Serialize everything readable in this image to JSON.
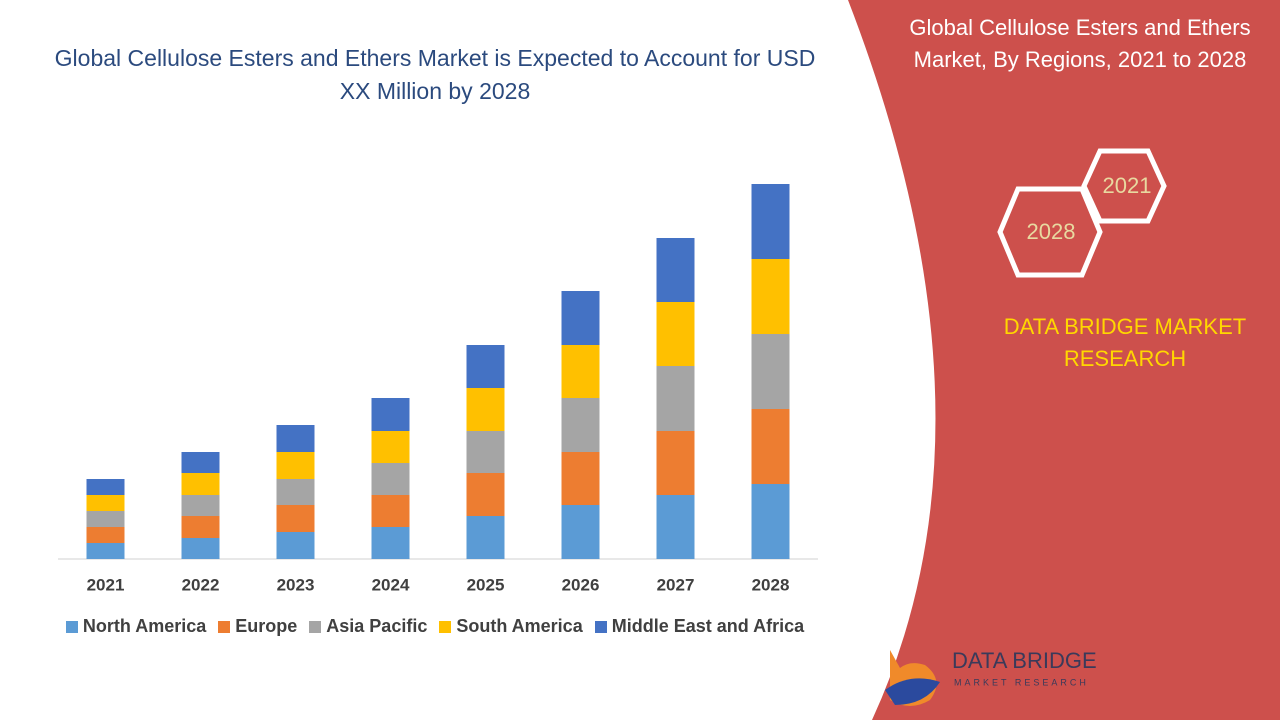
{
  "chart_data": {
    "type": "stacked_bar",
    "title": "Global Cellulose Esters and Ethers Market is Expected to Account for USD XX Million by 2028",
    "categories": [
      "2021",
      "2022",
      "2023",
      "2024",
      "2025",
      "2026",
      "2027",
      "2028"
    ],
    "series": [
      {
        "name": "North America",
        "color": "#5b9bd5",
        "values": [
          16,
          21,
          27,
          32,
          43,
          54,
          64,
          75
        ]
      },
      {
        "name": "Europe",
        "color": "#ed7d31",
        "values": [
          16,
          22,
          27,
          32,
          43,
          53,
          64,
          75
        ]
      },
      {
        "name": "Asia Pacific",
        "color": "#a5a5a5",
        "values": [
          16,
          21,
          26,
          32,
          42,
          54,
          65,
          75
        ]
      },
      {
        "name": "South America",
        "color": "#ffc000",
        "values": [
          16,
          22,
          27,
          32,
          43,
          53,
          64,
          75
        ]
      },
      {
        "name": "Middle East and Africa",
        "color": "#4472c4",
        "values": [
          16,
          21,
          27,
          33,
          43,
          54,
          64,
          75
        ]
      }
    ]
  },
  "panel": {
    "title": "Global Cellulose Esters and Ethers Market, By Regions, 2021 to 2028",
    "hex_start": "2021",
    "hex_end": "2028",
    "brand": "DATA BRIDGE MARKET RESEARCH"
  },
  "logo": {
    "name": "DATA BRIDGE",
    "tagline": "MARKET RESEARCH"
  }
}
